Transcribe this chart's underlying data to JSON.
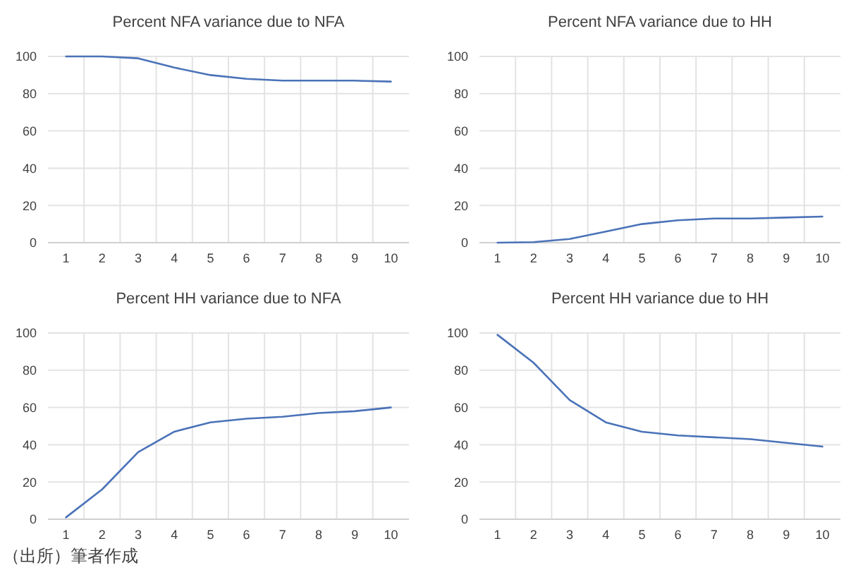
{
  "chart_data": [
    {
      "type": "line",
      "title": "Percent NFA variance due to NFA",
      "categories": [
        "1",
        "2",
        "3",
        "4",
        "5",
        "6",
        "7",
        "8",
        "9",
        "10"
      ],
      "series": [
        {
          "color": "#4a72b8",
          "values": [
            100,
            100,
            99,
            94,
            90,
            88,
            87,
            87,
            87,
            86.5
          ]
        }
      ],
      "ylim": [
        0,
        100
      ],
      "yticks": [
        0,
        20,
        40,
        60,
        80,
        100
      ],
      "grid": true
    },
    {
      "type": "line",
      "title": "Percent NFA variance due to HH",
      "categories": [
        "1",
        "2",
        "3",
        "4",
        "5",
        "6",
        "7",
        "8",
        "9",
        "10"
      ],
      "series": [
        {
          "color": "#4a72b8",
          "values": [
            0,
            0.3,
            2,
            6,
            10,
            12,
            13,
            13,
            13.5,
            14
          ]
        }
      ],
      "ylim": [
        0,
        100
      ],
      "yticks": [
        0,
        20,
        40,
        60,
        80,
        100
      ],
      "grid": true
    },
    {
      "type": "line",
      "title": "Percent HH variance due to NFA",
      "categories": [
        "1",
        "2",
        "3",
        "4",
        "5",
        "6",
        "7",
        "8",
        "9",
        "10"
      ],
      "series": [
        {
          "color": "#4a72b8",
          "values": [
            1,
            16,
            36,
            47,
            52,
            54,
            55,
            57,
            58,
            60
          ]
        }
      ],
      "ylim": [
        0,
        100
      ],
      "yticks": [
        0,
        20,
        40,
        60,
        80,
        100
      ],
      "grid": true,
      "annotations": [
        "（出所）筆者作成"
      ]
    },
    {
      "type": "line",
      "title": "Percent HH variance due to HH",
      "categories": [
        "1",
        "2",
        "3",
        "4",
        "5",
        "6",
        "7",
        "8",
        "9",
        "10"
      ],
      "series": [
        {
          "color": "#4a72b8",
          "values": [
            99,
            84,
            64,
            52,
            47,
            45,
            44,
            43,
            41,
            39
          ]
        }
      ],
      "ylim": [
        0,
        100
      ],
      "yticks": [
        0,
        20,
        40,
        60,
        80,
        100
      ],
      "grid": true
    }
  ]
}
